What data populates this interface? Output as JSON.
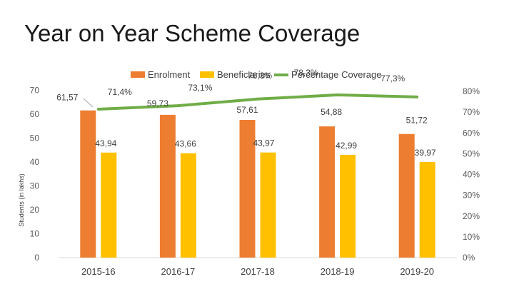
{
  "slide_title": "Year on Year Scheme Coverage",
  "chart_data": {
    "type": "bar",
    "title": "Year on Year Scheme Coverage",
    "categories": [
      "2015-16",
      "2016-17",
      "2017-18",
      "2018-19",
      "2019-20"
    ],
    "series": [
      {
        "name": "Enrolment",
        "kind": "bar",
        "axis": "left",
        "color": "#ED7D31",
        "values": [
          61.57,
          59.73,
          57.61,
          54.88,
          51.72
        ],
        "labels": [
          "61,57",
          "59,73",
          "57,61",
          "54,88",
          "51,72"
        ]
      },
      {
        "name": "Beneficiaries",
        "kind": "bar",
        "axis": "left",
        "color": "#FFC000",
        "values": [
          43.94,
          43.66,
          43.97,
          42.99,
          39.97
        ],
        "labels": [
          "43,94",
          "43,66",
          "43,97",
          "42,99",
          "39,97"
        ]
      },
      {
        "name": "Percentage Coverage",
        "kind": "line",
        "axis": "right",
        "color": "#70AD47",
        "values": [
          71.4,
          73.1,
          76.3,
          78.3,
          77.3
        ],
        "labels": [
          "71,4%",
          "73,1%",
          "76,3%",
          "78,3%",
          "77,3%"
        ]
      }
    ],
    "ylabel": "Students (in lakhs)",
    "ylim": [
      0,
      70
    ],
    "yticks": [
      "0",
      "10",
      "20",
      "30",
      "40",
      "50",
      "60",
      "70"
    ],
    "y2lim": [
      0,
      80
    ],
    "y2ticks": [
      "0%",
      "10%",
      "20%",
      "30%",
      "40%",
      "50%",
      "60%",
      "70%",
      "80%"
    ],
    "legend_position": "top"
  }
}
